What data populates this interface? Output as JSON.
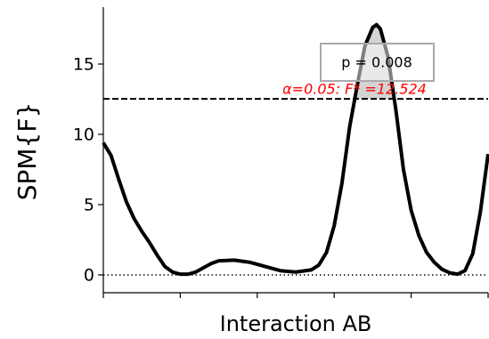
{
  "chart_data": {
    "type": "line",
    "x": [
      0,
      2,
      4,
      6,
      8,
      10,
      12,
      14,
      16,
      18,
      20,
      22,
      24,
      26,
      28,
      30,
      34,
      38,
      42,
      46,
      50,
      54,
      56,
      58,
      60,
      62,
      64,
      66,
      68,
      70,
      71,
      72,
      74,
      76,
      78,
      80,
      82,
      84,
      86,
      88,
      90,
      92,
      94,
      96,
      98,
      100
    ],
    "series": [
      {
        "color": "#000000",
        "values": [
          9.4,
          8.5,
          6.8,
          5.2,
          4.0,
          3.1,
          2.3,
          1.4,
          0.6,
          0.2,
          0.05,
          0.05,
          0.2,
          0.5,
          0.8,
          1.0,
          1.05,
          0.9,
          0.6,
          0.3,
          0.2,
          0.35,
          0.7,
          1.6,
          3.5,
          6.5,
          10.5,
          13.5,
          16.3,
          17.6,
          17.8,
          17.5,
          15.5,
          11.8,
          7.5,
          4.6,
          2.8,
          1.6,
          0.9,
          0.4,
          0.15,
          0.05,
          0.3,
          1.5,
          4.5,
          8.6
        ]
      }
    ],
    "xlim": [
      0,
      100
    ],
    "xticks": [
      0,
      20,
      40,
      60,
      80,
      100
    ],
    "ylim": [
      -1.27,
      19.05
    ],
    "yticks": [
      0,
      5,
      10,
      15
    ],
    "xlabel": "Interaction AB",
    "ylabel": "SPM{F}",
    "threshold": 12.524,
    "threshold_label": "α=0.05:  F* =12.524",
    "annotation": "p = 0.008"
  }
}
